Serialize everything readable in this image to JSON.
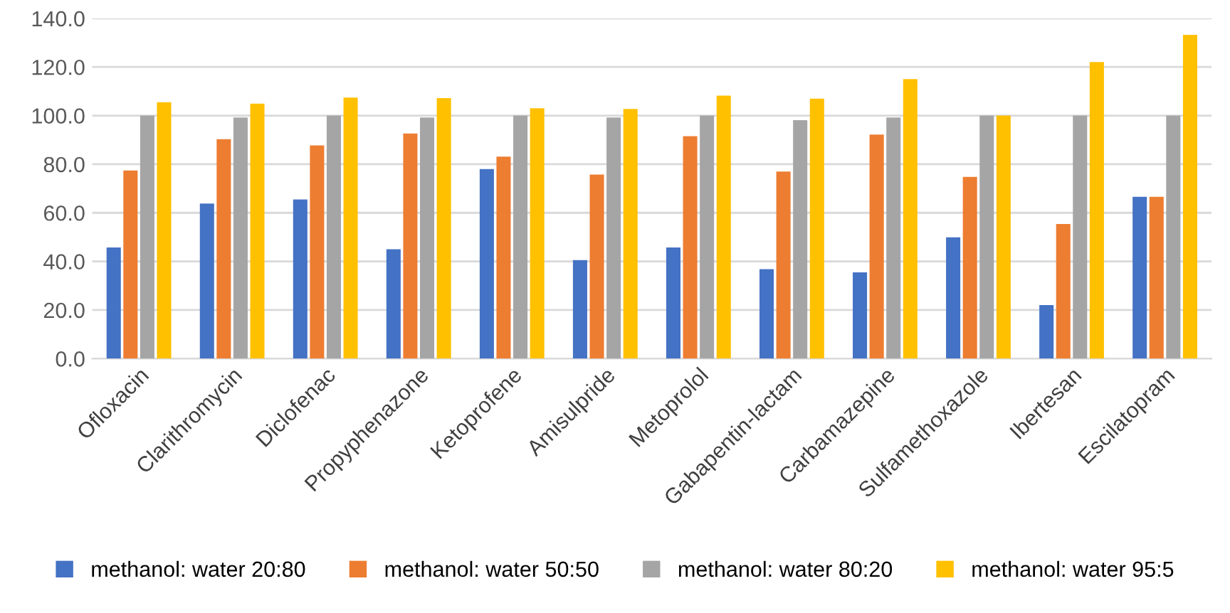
{
  "chart_data": {
    "type": "bar",
    "categories": [
      "Ofloxacin",
      "Clarithromycin",
      "Diclofenac",
      "Propyphenazone",
      "Ketoprofene",
      "Amisulpride",
      "Metoprolol",
      "Gabapentin-lactam",
      "Carbamazepine",
      "Sulfamethoxazole",
      "Ibertesan",
      "Escilatopram"
    ],
    "series": [
      {
        "name": "methanol: water 20:80",
        "color": "#4472c4",
        "values": [
          45.7,
          63.8,
          65.5,
          45.0,
          78.0,
          40.5,
          45.7,
          36.8,
          35.5,
          49.9,
          22.0,
          66.6
        ]
      },
      {
        "name": "methanol: water 50:50",
        "color": "#ed7d31",
        "values": [
          77.4,
          90.3,
          87.7,
          92.6,
          83.1,
          75.7,
          91.5,
          77.0,
          92.2,
          74.8,
          55.4,
          66.6
        ]
      },
      {
        "name": "methanol: water 80:20",
        "color": "#a5a5a5",
        "values": [
          100.0,
          99.2,
          100.0,
          99.2,
          100.0,
          99.2,
          100.0,
          98.1,
          99.2,
          100.0,
          100.0,
          100.0
        ]
      },
      {
        "name": "methanol: water 95:5",
        "color": "#ffc000",
        "values": [
          105.5,
          104.9,
          107.4,
          107.2,
          103.0,
          102.7,
          108.2,
          107.0,
          115.0,
          100.0,
          122.0,
          133.2
        ]
      }
    ],
    "ylim": [
      0,
      140
    ],
    "yticks": [
      {
        "value": 0,
        "label": "0.0"
      },
      {
        "value": 20,
        "label": "20.0"
      },
      {
        "value": 40,
        "label": "40.0"
      },
      {
        "value": 60,
        "label": "60.0"
      },
      {
        "value": 80,
        "label": "80.0"
      },
      {
        "value": 100,
        "label": "100.0"
      },
      {
        "value": 120,
        "label": "120.0"
      },
      {
        "value": 140,
        "label": "140.0"
      }
    ],
    "grid": "y",
    "legend": "bottom"
  }
}
